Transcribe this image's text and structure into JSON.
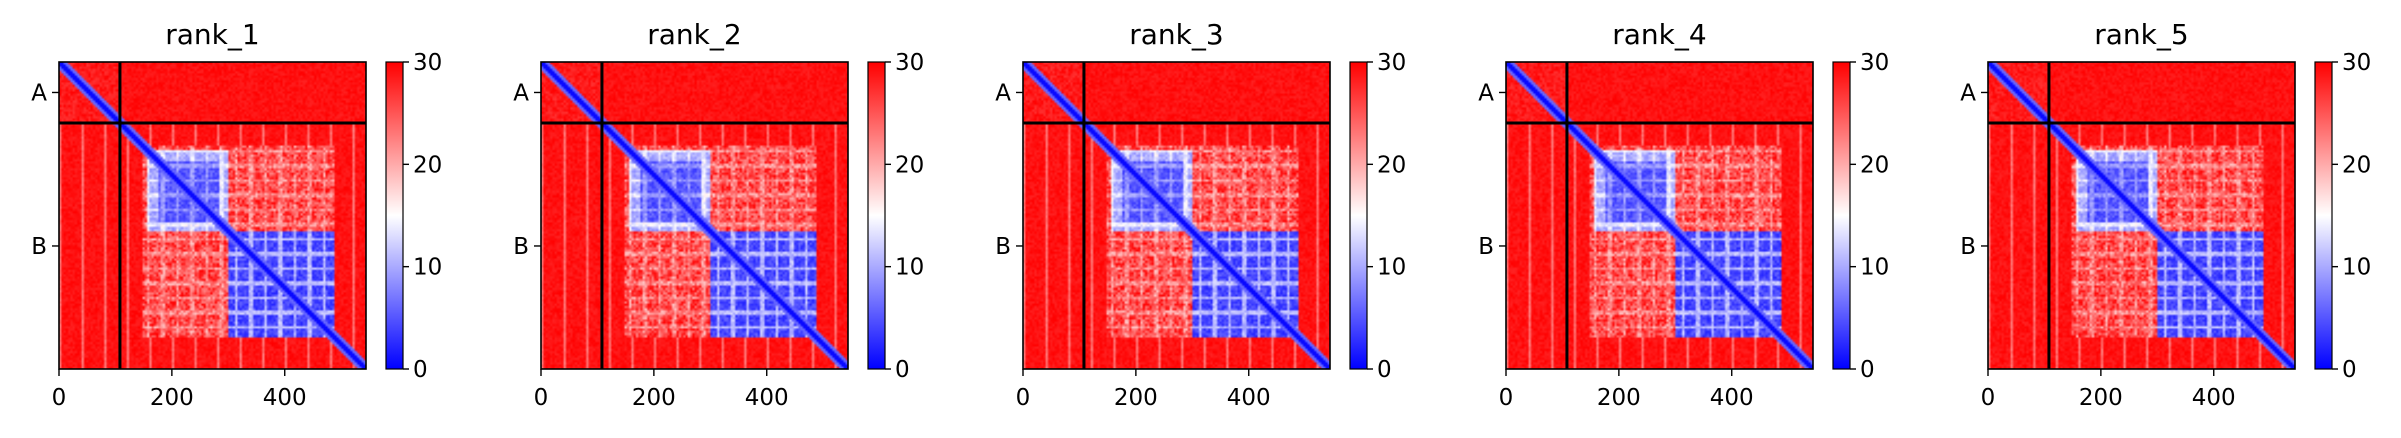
{
  "chart_data": {
    "type": "heatmap",
    "panels": [
      {
        "title": "rank_1",
        "variant": 0
      },
      {
        "title": "rank_2",
        "variant": 1
      },
      {
        "title": "rank_3",
        "variant": 2
      },
      {
        "title": "rank_4",
        "variant": 3
      },
      {
        "title": "rank_5",
        "variant": 4
      }
    ],
    "xlim": [
      0,
      544
    ],
    "x_ticks": [
      0,
      200,
      400
    ],
    "chain_labels": [
      "A",
      "B"
    ],
    "chain_boundary": 108,
    "colorbar": {
      "min": 0,
      "max": 30,
      "ticks": [
        0,
        10,
        20,
        30
      ],
      "colormap": "bwr",
      "colors": {
        "low": "#0000ff",
        "mid": "#ffffff",
        "high": "#ff0000"
      }
    },
    "blocks": {
      "b1": [
        155,
        300
      ],
      "b2": [
        300,
        490
      ],
      "b3": [
        150,
        490
      ]
    }
  }
}
